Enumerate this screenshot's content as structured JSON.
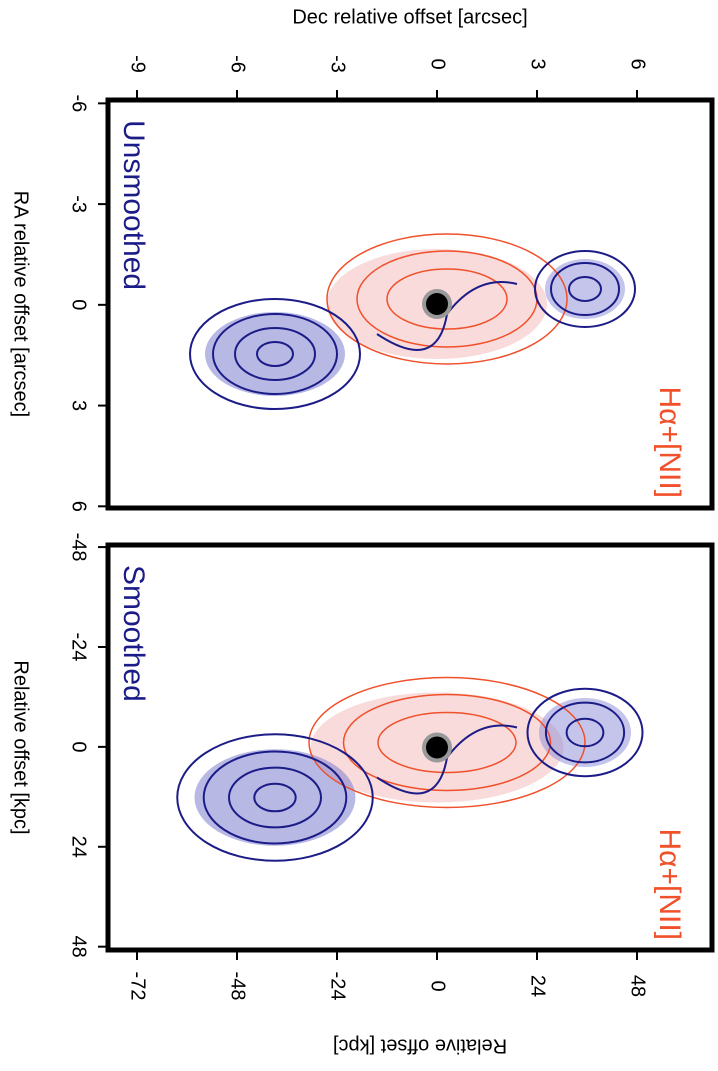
{
  "chart_data": [
    {
      "type": "contour",
      "panel_label": "Unsmoothed",
      "line_label": "Hα+[NII]",
      "xlabel": "Dec relative offset [arcsec]",
      "ylabel": "RA relative offset [arcsec]",
      "xlim": [
        -9.87,
        8.25
      ],
      "xticks": [
        -9,
        -6,
        -3,
        0,
        3,
        6
      ],
      "ylim": [
        -6.1,
        6.05
      ],
      "yticks": [
        -6,
        -3,
        0,
        3,
        6
      ]
    },
    {
      "type": "contour",
      "panel_label": "Smoothed",
      "line_label": "Hα+[NII]",
      "xlabel": "Relative offset [kpc]",
      "ylabel": "Relative offset [kpc]",
      "xlim": [
        -78.96,
        66
      ],
      "xticks": [
        -72,
        -48,
        -24,
        0,
        24,
        48
      ],
      "ylim": [
        -48.5,
        48.8
      ],
      "yticks": [
        -48,
        -24,
        0,
        24,
        48
      ]
    }
  ]
}
